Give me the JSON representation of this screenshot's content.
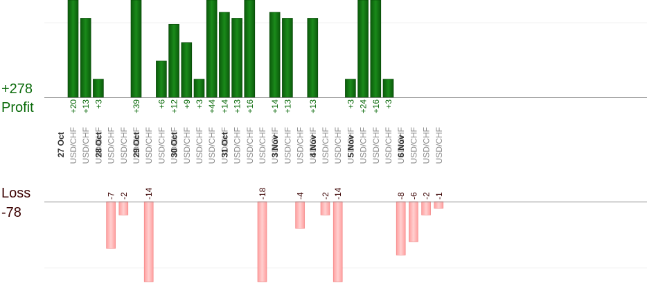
{
  "summary": {
    "profit_total": "+278",
    "profit_label": "Profit",
    "loss_label": "Loss",
    "loss_total": "-78"
  },
  "colors": {
    "profit_bar": "#0b6b0b",
    "profit_text": "#0a6a0a",
    "loss_bar": "#ffb3b3",
    "loss_text": "#3a0000",
    "symbol_text": "#8a8a8a",
    "date_text": "#333333"
  },
  "chart_data": {
    "type": "bar",
    "title": "",
    "xlabel": "",
    "ylabel": "",
    "profit_ylim": [
      0,
      16
    ],
    "loss_ylim": [
      -12,
      0
    ],
    "trades": [
      {
        "date": "27 Oct",
        "symbol": "USD/CHF",
        "value": 20
      },
      {
        "date": "",
        "symbol": "USD/CHF",
        "value": 13
      },
      {
        "date": "",
        "symbol": "USD/CHF",
        "value": 3
      },
      {
        "date": "28 Oct",
        "symbol": "USD/CHF",
        "value": -7
      },
      {
        "date": "",
        "symbol": "USD/CHF",
        "value": -2
      },
      {
        "date": "",
        "symbol": "USD/CHF",
        "value": 39
      },
      {
        "date": "29 Oct",
        "symbol": "USD/CHF",
        "value": -14
      },
      {
        "date": "",
        "symbol": "USD/CHF",
        "value": 6
      },
      {
        "date": "",
        "symbol": "USD/CHF",
        "value": 12
      },
      {
        "date": "30 Oct",
        "symbol": "USD/CHF",
        "value": 9
      },
      {
        "date": "",
        "symbol": "USD/CHF",
        "value": 3
      },
      {
        "date": "",
        "symbol": "USD/CHF",
        "value": 44
      },
      {
        "date": "",
        "symbol": "USD/CHF",
        "value": 14
      },
      {
        "date": "31 Oct",
        "symbol": "USD/CHF",
        "value": 13
      },
      {
        "date": "",
        "symbol": "USD/CHF",
        "value": 16
      },
      {
        "date": "",
        "symbol": "USD/CHF",
        "value": -18
      },
      {
        "date": "",
        "symbol": "USD/CHF",
        "value": 14
      },
      {
        "date": "3 Nov",
        "symbol": "USD/CHF",
        "value": 13
      },
      {
        "date": "",
        "symbol": "USD/CHF",
        "value": -4
      },
      {
        "date": "",
        "symbol": "USD/CHF",
        "value": 13
      },
      {
        "date": "4 Nov",
        "symbol": "USD/CHF",
        "value": -2
      },
      {
        "date": "",
        "symbol": "USD/CHF",
        "value": -14
      },
      {
        "date": "",
        "symbol": "USD/CHF",
        "value": 3
      },
      {
        "date": "5 Nov",
        "symbol": "USD/CHF",
        "value": 24
      },
      {
        "date": "",
        "symbol": "USD/CHF",
        "value": 16
      },
      {
        "date": "",
        "symbol": "USD/CHF",
        "value": 3
      },
      {
        "date": "",
        "symbol": "USD/CHF",
        "value": -8
      },
      {
        "date": "6 Nov",
        "symbol": "USD/CHF",
        "value": -6
      },
      {
        "date": "",
        "symbol": "USD/CHF",
        "value": -2
      },
      {
        "date": "",
        "symbol": "USD/CHF",
        "value": -1
      }
    ]
  }
}
